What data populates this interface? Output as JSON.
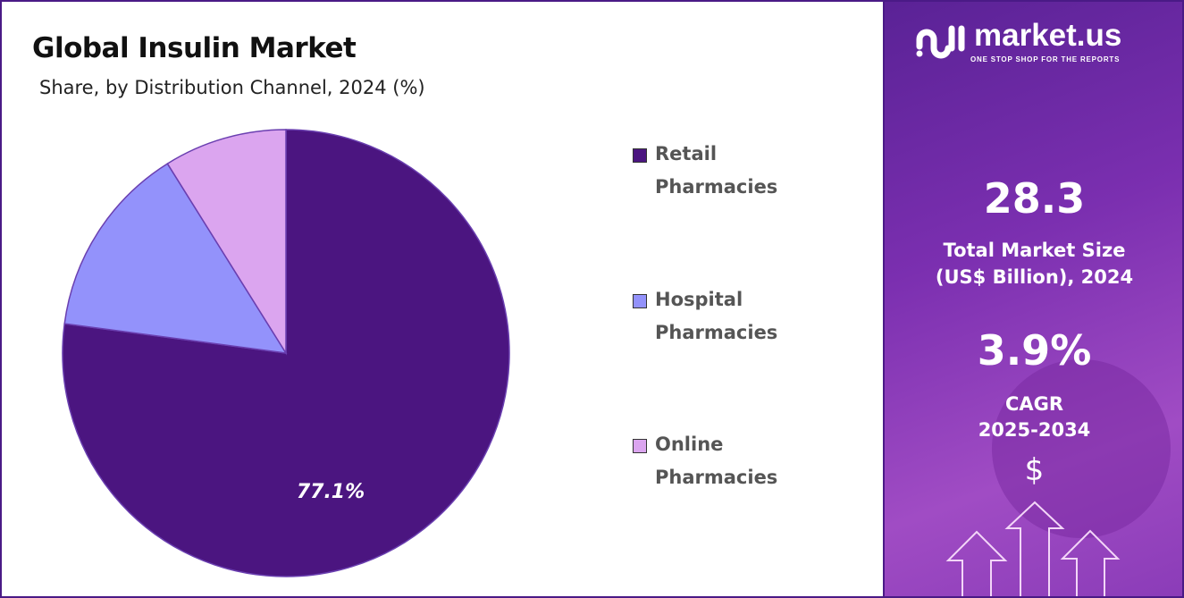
{
  "header": {
    "title": "Global Insulin Market",
    "subtitle": "Share, by Distribution Channel, 2024 (%)"
  },
  "chart_data": {
    "type": "pie",
    "title": "Global Insulin Market",
    "subtitle": "Share, by Distribution Channel, 2024 (%)",
    "categories": [
      "Retail Pharmacies",
      "Hospital Pharmacies",
      "Online Pharmacies"
    ],
    "values": [
      77.1,
      14.0,
      8.9
    ],
    "colors": [
      "#4b1580",
      "#9392fb",
      "#dba5ef"
    ],
    "data_labels": [
      "77.1%",
      "",
      ""
    ],
    "legend_placement": "right"
  },
  "legend": [
    {
      "line1": "Retail",
      "line2": "Pharmacies"
    },
    {
      "line1": "Hospital",
      "line2": "Pharmacies"
    },
    {
      "line1": "Online",
      "line2": "Pharmacies"
    }
  ],
  "sidebar": {
    "logo_text": "market.us",
    "logo_tagline": "ONE STOP SHOP FOR THE REPORTS",
    "market_size": "28.3",
    "market_size_label_1": "Total Market Size",
    "market_size_label_2": "(US$ Billion), 2024",
    "cagr": "3.9%",
    "cagr_label_1": "CAGR",
    "cagr_label_2": "2025-2034",
    "currency_symbol": "$"
  }
}
